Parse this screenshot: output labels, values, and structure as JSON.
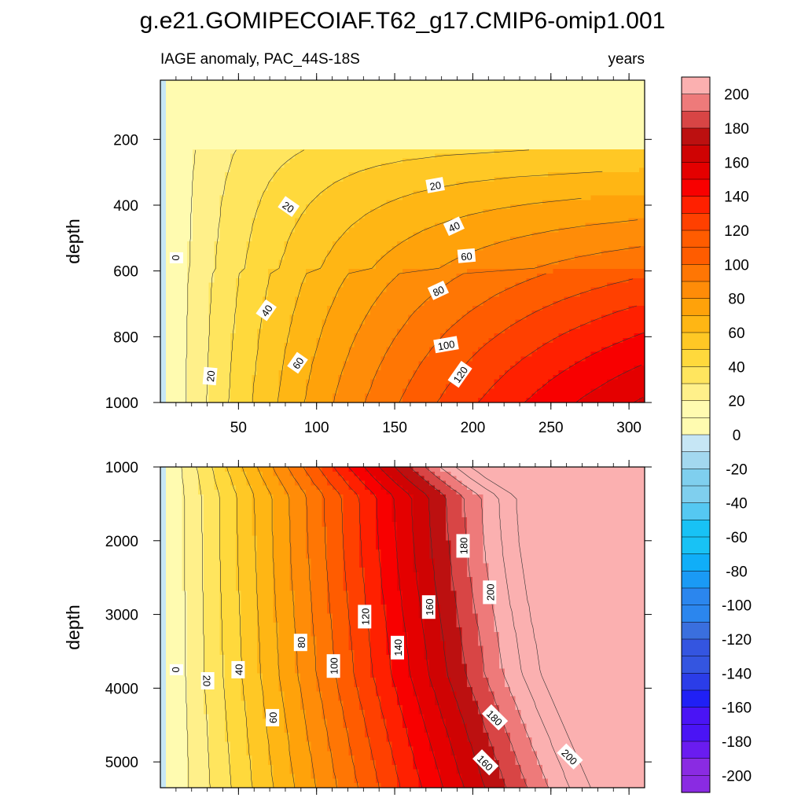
{
  "title": "g.e21.GOMIPECOIAF.T62_g17.CMIP6-omip1.001",
  "subtitle_left": "IAGE anomaly, PAC_44S-18S",
  "subtitle_right": "years",
  "colors": {
    "neg": [
      "#8a2be2",
      "#6a1cf0",
      "#4a14f5",
      "#2020f5",
      "#2b3de8",
      "#3455e0",
      "#3a6fde",
      "#2b86ee",
      "#1a9af5",
      "#10aef8",
      "#18c2f5",
      "#55c8f2",
      "#7fcfee",
      "#a3d8ef",
      "#c6e6f5"
    ],
    "pos": [
      "#fffbb0",
      "#fff08a",
      "#ffe55e",
      "#ffd93c",
      "#ffc825",
      "#ffb614",
      "#ffa20a",
      "#ff8c08",
      "#ff7604",
      "#ff5c00",
      "#ff4000",
      "#ff2000",
      "#f80000",
      "#e40000",
      "#cf0303",
      "#bc1010",
      "#d84545",
      "#ee7a7a",
      "#fbb0b0"
    ]
  },
  "chart_data": [
    {
      "type": "contour",
      "panel": "upper",
      "xlabel": "",
      "ylabel": "depth",
      "xlim": [
        0,
        310
      ],
      "ylim": [
        1000,
        20
      ],
      "xticks": [
        50,
        100,
        150,
        200,
        250,
        300
      ],
      "yticks": [
        200,
        400,
        600,
        800,
        1000
      ],
      "contour_interval": 10,
      "contour_labels": [
        {
          "text": "0",
          "x": 10,
          "depth": 560,
          "angle": 90
        },
        {
          "text": "20",
          "x": 82,
          "depth": 405,
          "angle": 35
        },
        {
          "text": "20",
          "x": 176,
          "depth": 340,
          "angle": -10
        },
        {
          "text": "40",
          "x": 188,
          "depth": 465,
          "angle": -25
        },
        {
          "text": "60",
          "x": 196,
          "depth": 555,
          "angle": -5
        },
        {
          "text": "40",
          "x": 68,
          "depth": 720,
          "angle": -55
        },
        {
          "text": "80",
          "x": 178,
          "depth": 660,
          "angle": -25
        },
        {
          "text": "100",
          "x": 183,
          "depth": 825,
          "angle": -10
        },
        {
          "text": "20",
          "x": 32,
          "depth": 920,
          "angle": -85
        },
        {
          "text": "60",
          "x": 88,
          "depth": 880,
          "angle": -55
        },
        {
          "text": "120",
          "x": 192,
          "depth": 915,
          "angle": -55
        }
      ]
    },
    {
      "type": "contour",
      "panel": "lower",
      "xlabel": "",
      "ylabel": "depth",
      "xlim": [
        0,
        310
      ],
      "ylim": [
        5350,
        1000
      ],
      "xticks": [
        50,
        100,
        150,
        200,
        250,
        300
      ],
      "yticks": [
        1000,
        2000,
        3000,
        4000,
        5000
      ],
      "contour_interval": 10,
      "contour_labels": [
        {
          "text": "0",
          "x": 10,
          "depth": 3750,
          "angle": 90
        },
        {
          "text": "20",
          "x": 30,
          "depth": 3900,
          "angle": 90
        },
        {
          "text": "40",
          "x": 50,
          "depth": 3750,
          "angle": -90
        },
        {
          "text": "60",
          "x": 72,
          "depth": 4400,
          "angle": -90
        },
        {
          "text": "80",
          "x": 90,
          "depth": 3380,
          "angle": -90
        },
        {
          "text": "100",
          "x": 111,
          "depth": 3700,
          "angle": -90
        },
        {
          "text": "120",
          "x": 131,
          "depth": 3030,
          "angle": -90
        },
        {
          "text": "140",
          "x": 152,
          "depth": 3450,
          "angle": -90
        },
        {
          "text": "160",
          "x": 172,
          "depth": 2900,
          "angle": -90
        },
        {
          "text": "180",
          "x": 194,
          "depth": 2070,
          "angle": -90
        },
        {
          "text": "200",
          "x": 211,
          "depth": 2700,
          "angle": -90
        },
        {
          "text": "180",
          "x": 214,
          "depth": 4400,
          "angle": 45
        },
        {
          "text": "160",
          "x": 208,
          "depth": 5010,
          "angle": 45
        },
        {
          "text": "200",
          "x": 262,
          "depth": 4930,
          "angle": 45
        }
      ]
    }
  ],
  "colorbar": {
    "labels": [
      "200",
      "180",
      "160",
      "140",
      "120",
      "100",
      "80",
      "60",
      "40",
      "20",
      "0",
      "-20",
      "-40",
      "-60",
      "-80",
      "-100",
      "-120",
      "-140",
      "-160",
      "-180",
      "-200"
    ]
  }
}
